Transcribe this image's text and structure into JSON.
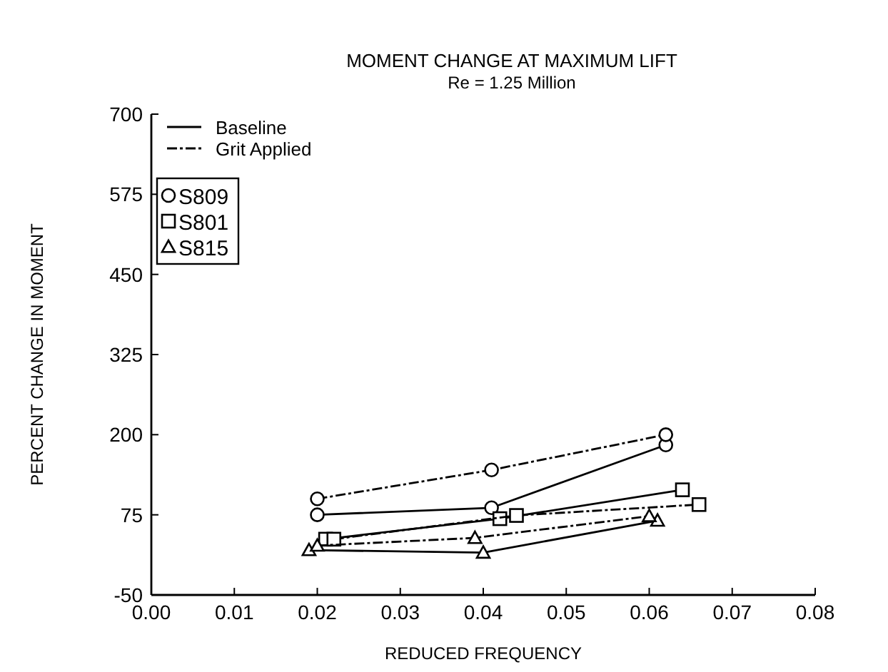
{
  "chart_data": {
    "type": "line",
    "title": "MOMENT CHANGE AT MAXIMUM LIFT",
    "subtitle": "Re = 1.25 Million",
    "xlabel": "REDUCED FREQUENCY",
    "ylabel": "PERCENT CHANGE IN MOMENT",
    "xlim": [
      0,
      0.08
    ],
    "xticks": [
      {
        "value": 0,
        "label": "0.00"
      },
      {
        "value": 0.01,
        "label": "0.01"
      },
      {
        "value": 0.02,
        "label": "0.02"
      },
      {
        "value": 0.03,
        "label": "0.03"
      },
      {
        "value": 0.04,
        "label": "0.04"
      },
      {
        "value": 0.05,
        "label": "0.05"
      },
      {
        "value": 0.06,
        "label": "0.06"
      },
      {
        "value": 0.07,
        "label": "0.07"
      },
      {
        "value": 0.08,
        "label": "0.08"
      }
    ],
    "ylim": [
      -50,
      700
    ],
    "yticks": [
      -50,
      75,
      200,
      325,
      450,
      575,
      700
    ],
    "grid": false,
    "legend": "top left",
    "annotations": [
      "Baseline",
      "Grit Applied"
    ],
    "series": [
      {
        "name": "S809",
        "color": "#000000",
        "marker": "circle",
        "line_style": "solid",
        "x": [
          0.02,
          0.041,
          0.062
        ],
        "values": [
          75,
          86,
          184
        ]
      },
      {
        "color": "#000000",
        "marker": "circle",
        "line_style": "dashed",
        "x": [
          0.02,
          0.041,
          0.062
        ],
        "values": [
          100,
          145,
          200
        ]
      },
      {
        "name": "S801",
        "color": "#000000",
        "marker": "square",
        "line_style": "solid",
        "x": [
          0.021,
          0.042,
          0.064
        ],
        "values": [
          37,
          69,
          114
        ]
      },
      {
        "color": "#000000",
        "marker": "square",
        "line_style": "dashed",
        "x": [
          0.022,
          0.044,
          0.066
        ],
        "values": [
          37,
          74,
          91
        ]
      },
      {
        "name": "S815",
        "color": "#000000",
        "marker": "triangle",
        "line_style": "solid",
        "x": [
          0.019,
          0.04,
          0.061
        ],
        "values": [
          20,
          16,
          66
        ]
      },
      {
        "color": "#000000",
        "marker": "triangle",
        "line_style": "dashed",
        "x": [
          0.02,
          0.039,
          0.06
        ],
        "values": [
          27,
          39,
          73
        ]
      }
    ]
  }
}
